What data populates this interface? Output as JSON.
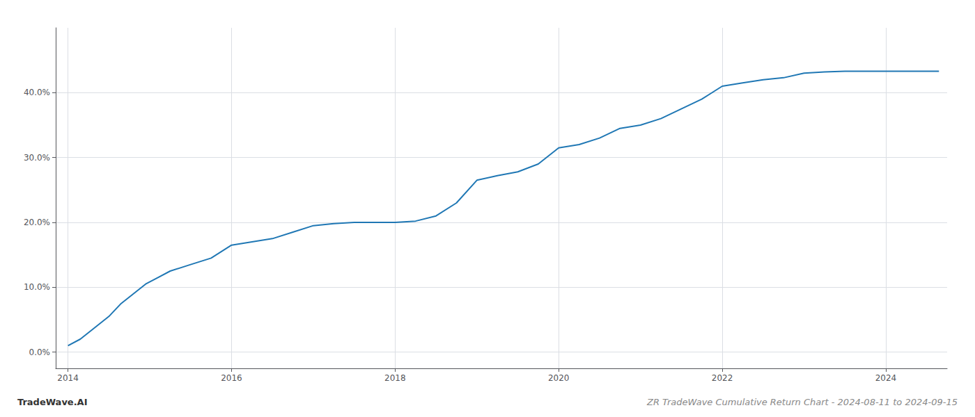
{
  "chart_data": {
    "type": "line",
    "title": "ZR TradeWave Cumulative Return Chart - 2024-08-11 to 2024-09-15",
    "annotations": [
      "TradeWave.AI"
    ],
    "x": [
      2014.0,
      2014.15,
      2014.3,
      2014.5,
      2014.65,
      2014.8,
      2014.95,
      2015.1,
      2015.25,
      2015.5,
      2015.75,
      2016.0,
      2016.25,
      2016.5,
      2016.75,
      2017.0,
      2017.25,
      2017.5,
      2017.75,
      2018.0,
      2018.25,
      2018.5,
      2018.75,
      2019.0,
      2019.25,
      2019.5,
      2019.75,
      2020.0,
      2020.25,
      2020.5,
      2020.75,
      2021.0,
      2021.25,
      2021.5,
      2021.75,
      2022.0,
      2022.25,
      2022.5,
      2022.75,
      2023.0,
      2023.25,
      2023.5,
      2023.75,
      2024.0,
      2024.25,
      2024.5,
      2024.65
    ],
    "values": [
      1.0,
      2.0,
      3.5,
      5.5,
      7.5,
      9.0,
      10.5,
      11.5,
      12.5,
      13.5,
      14.5,
      16.5,
      17.0,
      17.5,
      18.5,
      19.5,
      19.8,
      20.0,
      20.0,
      20.0,
      20.2,
      21.0,
      23.0,
      26.5,
      27.2,
      27.8,
      29.0,
      31.5,
      32.0,
      33.0,
      34.5,
      35.0,
      36.0,
      37.5,
      39.0,
      41.0,
      41.5,
      42.0,
      42.3,
      43.0,
      43.2,
      43.3,
      43.3,
      43.3,
      43.3,
      43.3,
      43.3
    ],
    "color": "#1f77b4",
    "xlim": [
      2013.85,
      2024.75
    ],
    "ylim": [
      -2.5,
      50
    ],
    "xticks": [
      2014,
      2016,
      2018,
      2020,
      2022,
      2024
    ],
    "yticks": [
      {
        "value": 0.0,
        "label": "0.0%"
      },
      {
        "value": 10.0,
        "label": "10.0%"
      },
      {
        "value": 20.0,
        "label": "20.0%"
      },
      {
        "value": 30.0,
        "label": "30.0%"
      },
      {
        "value": 40.0,
        "label": "40.0%"
      }
    ],
    "grid": true
  }
}
